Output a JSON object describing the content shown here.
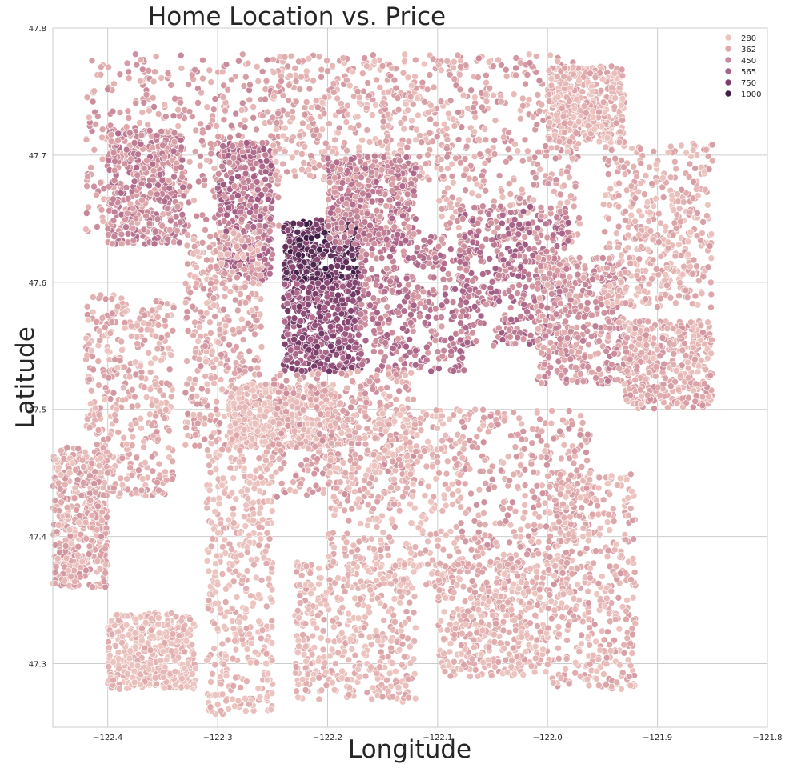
{
  "chart_data": {
    "type": "scatter",
    "title": "Home Location vs. Price",
    "xlabel": "Longitude",
    "ylabel": "Latitude",
    "xlim": [
      -122.45,
      -121.8
    ],
    "ylim": [
      47.25,
      47.8
    ],
    "grid": true,
    "legend_position": "top-right",
    "x_ticks": [
      -122.4,
      -122.3,
      -122.2,
      -122.1,
      -122.0,
      -121.9,
      -121.8
    ],
    "x_tick_labels": [
      "−122.4",
      "−122.3",
      "−122.2",
      "−122.1",
      "−122.0",
      "−121.9",
      "−121.8"
    ],
    "y_ticks": [
      47.3,
      47.4,
      47.5,
      47.6,
      47.7,
      47.8
    ],
    "y_tick_labels": [
      "47.3",
      "47.4",
      "47.5",
      "47.6",
      "47.7",
      "47.8"
    ],
    "hue_legend": [
      {
        "label": "280",
        "color": "#ecc4c0"
      },
      {
        "label": "362",
        "color": "#dea8ab"
      },
      {
        "label": "450",
        "color": "#c98a9b"
      },
      {
        "label": "565",
        "color": "#a86389"
      },
      {
        "label": "750",
        "color": "#7c3f6b"
      },
      {
        "label": "1000",
        "color": "#3f1f47"
      }
    ],
    "clusters": [
      {
        "x": [
          -122.42,
          -122.24
        ],
        "y": [
          47.64,
          47.78
        ],
        "price": 360
      },
      {
        "x": [
          -122.4,
          -122.33
        ],
        "y": [
          47.63,
          47.72
        ],
        "price": 420
      },
      {
        "x": [
          -122.3,
          -122.25
        ],
        "y": [
          47.6,
          47.71
        ],
        "price": 480
      },
      {
        "x": [
          -122.25,
          -122.1
        ],
        "y": [
          47.68,
          47.78
        ],
        "price": 320
      },
      {
        "x": [
          -122.1,
          -121.97
        ],
        "y": [
          47.63,
          47.78
        ],
        "price": 340
      },
      {
        "x": [
          -122.24,
          -122.17
        ],
        "y": [
          47.6,
          47.65
        ],
        "price": 800
      },
      {
        "x": [
          -122.24,
          -122.17
        ],
        "y": [
          47.53,
          47.6
        ],
        "price": 620
      },
      {
        "x": [
          -122.2,
          -122.12
        ],
        "y": [
          47.63,
          47.7
        ],
        "price": 430
      },
      {
        "x": [
          -122.17,
          -122.07
        ],
        "y": [
          47.53,
          47.64
        ],
        "price": 450
      },
      {
        "x": [
          -122.08,
          -121.98
        ],
        "y": [
          47.55,
          47.66
        ],
        "price": 470
      },
      {
        "x": [
          -122.01,
          -121.93
        ],
        "y": [
          47.52,
          47.62
        ],
        "price": 380
      },
      {
        "x": [
          -122.42,
          -122.34
        ],
        "y": [
          47.43,
          47.59
        ],
        "price": 320
      },
      {
        "x": [
          -122.33,
          -122.26
        ],
        "y": [
          47.47,
          47.64
        ],
        "price": 330
      },
      {
        "x": [
          -122.29,
          -122.19
        ],
        "y": [
          47.47,
          47.52
        ],
        "price": 280
      },
      {
        "x": [
          -122.25,
          -122.12
        ],
        "y": [
          47.43,
          47.53
        ],
        "price": 340
      },
      {
        "x": [
          -122.2,
          -122.08
        ],
        "y": [
          47.36,
          47.5
        ],
        "price": 300
      },
      {
        "x": [
          -122.08,
          -121.96
        ],
        "y": [
          47.35,
          47.5
        ],
        "price": 340
      },
      {
        "x": [
          -122.4,
          -122.32
        ],
        "y": [
          47.28,
          47.34
        ],
        "price": 280
      },
      {
        "x": [
          -122.31,
          -122.25
        ],
        "y": [
          47.26,
          47.47
        ],
        "price": 280
      },
      {
        "x": [
          -122.23,
          -122.12
        ],
        "y": [
          47.27,
          47.38
        ],
        "price": 290
      },
      {
        "x": [
          -122.1,
          -122.0
        ],
        "y": [
          47.29,
          47.38
        ],
        "price": 300
      },
      {
        "x": [
          -121.93,
          -121.85
        ],
        "y": [
          47.5,
          47.57
        ],
        "price": 330
      },
      {
        "x": [
          -121.95,
          -121.85
        ],
        "y": [
          47.58,
          47.71
        ],
        "price": 310
      },
      {
        "x": [
          -122.0,
          -121.92
        ],
        "y": [
          47.28,
          47.45
        ],
        "price": 310
      },
      {
        "x": [
          -122.45,
          -122.4
        ],
        "y": [
          47.36,
          47.47
        ],
        "price": 330
      },
      {
        "x": [
          -122.0,
          -121.93
        ],
        "y": [
          47.71,
          47.77
        ],
        "price": 300
      }
    ]
  }
}
